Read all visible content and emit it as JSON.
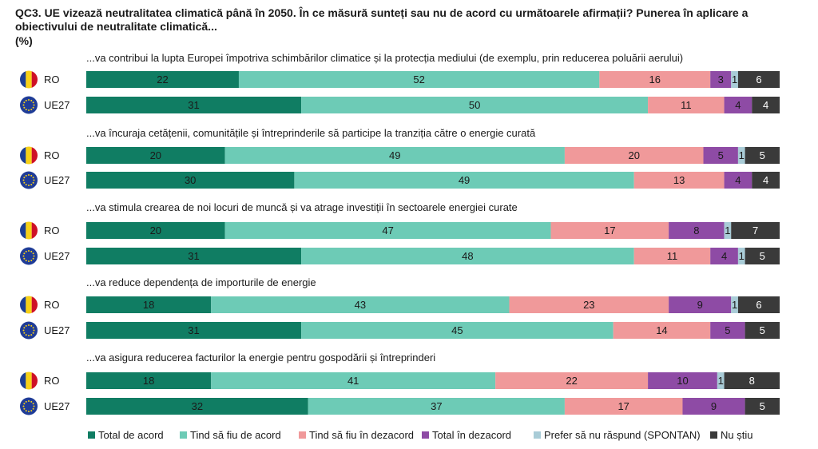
{
  "title": "QC3. UE vizează neutralitatea climatică până în 2050. În ce măsură sunteți sau nu de acord cu următoarele afirmații? Punerea în aplicare a obiectivului de neutralitate climatică...",
  "unit": "(%)",
  "colors": {
    "total_de_acord": "#107d63",
    "tind_de_acord": "#6dcbb6",
    "tind_dezacord": "#f0999a",
    "total_dezacord": "#8e4ba5",
    "prefer_nu_raspund": "#a9ccd7",
    "nu_stiu": "#3a3a3a"
  },
  "chart_data": {
    "type": "bar",
    "orientation": "horizontal-stacked-100",
    "xlim": [
      0,
      100
    ],
    "legend_position": "bottom",
    "legend": [
      {
        "key": "total_de_acord",
        "label": "Total de acord"
      },
      {
        "key": "tind_de_acord",
        "label": "Tind să fiu de acord"
      },
      {
        "key": "tind_dezacord",
        "label": "Tind să fiu în dezacord"
      },
      {
        "key": "total_dezacord",
        "label": "Total în dezacord"
      },
      {
        "key": "prefer_nu_raspund",
        "label": "Prefer să nu răspund (SPONTAN)"
      },
      {
        "key": "nu_stiu",
        "label": "Nu știu"
      }
    ],
    "groups": [
      {
        "statement": "...va contribui la lupta Europei împotriva schimbărilor climatice și la protecția mediului (de exemplu, prin reducerea poluării aerului)",
        "rows": [
          {
            "label": "RO",
            "flag": "ro-flag",
            "values": [
              22,
              52,
              16,
              3,
              1,
              6
            ]
          },
          {
            "label": "UE27",
            "flag": "eu-flag",
            "values": [
              31,
              50,
              11,
              4,
              0,
              4
            ]
          }
        ]
      },
      {
        "statement": "...va încuraja cetățenii, comunitățile și întreprinderile să participe la tranziția către o energie curată",
        "rows": [
          {
            "label": "RO",
            "flag": "ro-flag",
            "values": [
              20,
              49,
              20,
              5,
              1,
              5
            ]
          },
          {
            "label": "UE27",
            "flag": "eu-flag",
            "values": [
              30,
              49,
              13,
              4,
              0,
              4
            ]
          }
        ]
      },
      {
        "statement": "...va stimula crearea de noi locuri de muncă și va atrage investiții în sectoarele energiei curate",
        "rows": [
          {
            "label": "RO",
            "flag": "ro-flag",
            "values": [
              20,
              47,
              17,
              8,
              1,
              7
            ]
          },
          {
            "label": "UE27",
            "flag": "eu-flag",
            "values": [
              31,
              48,
              11,
              4,
              1,
              5
            ]
          }
        ]
      },
      {
        "statement": "...va reduce dependența de importurile de energie",
        "rows": [
          {
            "label": "RO",
            "flag": "ro-flag",
            "values": [
              18,
              43,
              23,
              9,
              1,
              6
            ]
          },
          {
            "label": "UE27",
            "flag": "eu-flag",
            "values": [
              31,
              45,
              14,
              5,
              0,
              5
            ]
          }
        ]
      },
      {
        "statement": "...va asigura reducerea facturilor la energie pentru gospodării și întreprinderi",
        "rows": [
          {
            "label": "RO",
            "flag": "ro-flag",
            "values": [
              18,
              41,
              22,
              10,
              1,
              8
            ]
          },
          {
            "label": "UE27",
            "flag": "eu-flag",
            "values": [
              32,
              37,
              17,
              9,
              0,
              5
            ]
          }
        ]
      }
    ]
  }
}
